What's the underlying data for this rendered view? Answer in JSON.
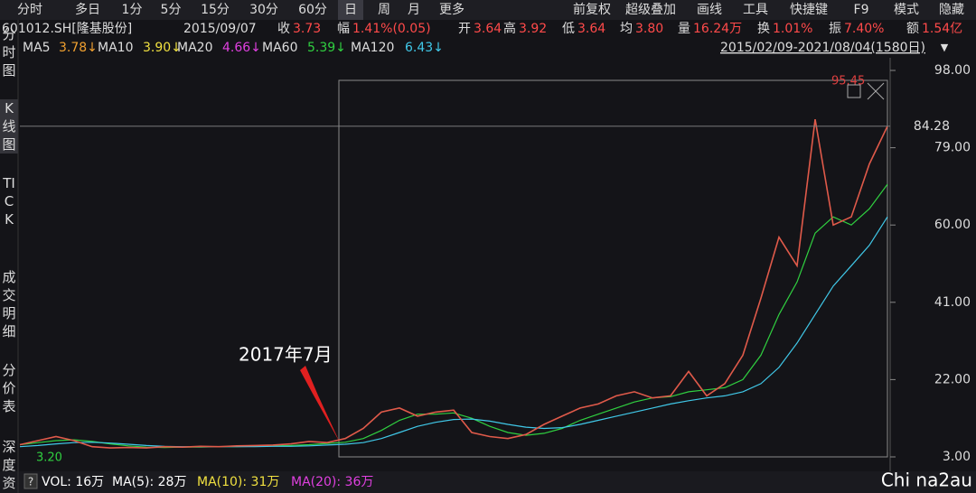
{
  "toolbar": {
    "tabs": [
      "分时",
      "多日",
      "1分",
      "5分",
      "15分",
      "30分",
      "60分",
      "日",
      "周",
      "月",
      "更多"
    ],
    "active": 7,
    "tools": [
      "前复权",
      "超级叠加",
      "画线",
      "工具",
      "快捷键",
      "F9",
      "模式",
      "隐藏"
    ]
  },
  "quote": {
    "code": "601012.SH[隆基股份]",
    "date": "2015/09/07",
    "items": [
      {
        "label": "收",
        "value": "3.73"
      },
      {
        "label": "幅",
        "value": "1.41%(0.05)"
      },
      {
        "label": "开",
        "value": "3.64"
      },
      {
        "label": "高",
        "value": "3.92"
      },
      {
        "label": "低",
        "value": "3.64"
      },
      {
        "label": "均",
        "value": "3.80"
      },
      {
        "label": "量",
        "value": "16.24万"
      },
      {
        "label": "换",
        "value": "1.01%"
      },
      {
        "label": "振",
        "value": "7.40%"
      },
      {
        "label": "额",
        "value": "1.54亿"
      }
    ]
  },
  "side_tabs": [
    "分时图",
    "K线图",
    "TICK",
    "成交明细",
    "分价表",
    "深度资"
  ],
  "watermark": "Chi na2au",
  "chart_data": {
    "type": "line",
    "range": "2015/02/09-2021/08/04(1580日)",
    "ma": [
      {
        "name": "MA5",
        "value": "3.78↓",
        "color": "#f0a030"
      },
      {
        "name": "MA10",
        "value": "3.90↓",
        "color": "#f0e040"
      },
      {
        "name": "MA20",
        "value": "4.66↓",
        "color": "#e040e0"
      },
      {
        "name": "MA60",
        "value": "5.39↓",
        "color": "#30d040",
        "values": [
          6,
          6.5,
          7,
          7.2,
          6.8,
          6.2,
          5.7,
          5.4,
          5.3,
          5.4,
          5.4,
          5.5,
          5.5,
          5.6,
          5.7,
          5.8,
          6,
          6.3,
          6.6,
          7.5,
          9.5,
          12,
          13.5,
          13.5,
          13.8,
          12.5,
          10.5,
          9,
          8.3,
          8.8,
          10,
          12,
          13.5,
          15,
          16.5,
          17.5,
          17.8,
          19,
          19.5,
          20,
          22,
          28,
          38,
          46,
          58,
          62,
          60,
          64,
          70
        ]
      },
      {
        "name": "MA120",
        "value": "6.43↓",
        "color": "#40c8e8",
        "values": [
          5.5,
          5.8,
          6.2,
          6.5,
          6.6,
          6.4,
          6.1,
          5.8,
          5.6,
          5.5,
          5.5,
          5.5,
          5.5,
          5.5,
          5.6,
          5.6,
          5.7,
          5.9,
          6.1,
          6.5,
          7.5,
          9,
          10.5,
          11.5,
          12.2,
          12.3,
          11.8,
          11,
          10.3,
          10,
          10.2,
          11,
          12,
          13,
          14,
          15,
          16,
          16.8,
          17.5,
          18,
          19,
          21,
          25,
          31,
          38,
          45,
          50,
          55,
          62
        ]
      }
    ],
    "series": [
      {
        "color": "#e05a4a",
        "values": [
          6,
          7,
          8,
          7,
          5.5,
          5.2,
          5.3,
          5.2,
          5.5,
          5.4,
          5.6,
          5.5,
          5.7,
          5.8,
          5.9,
          6.2,
          6.8,
          6.5,
          7.5,
          10,
          14,
          15,
          13,
          14,
          14.5,
          9,
          8,
          7.5,
          8.5,
          11,
          13,
          15,
          16,
          18,
          19,
          17.5,
          18,
          24,
          18,
          21,
          28,
          42,
          57,
          50,
          86,
          60,
          62,
          75,
          84.28
        ]
      }
    ],
    "ylim": [
      3,
      98
    ],
    "yticks": [
      {
        "value": 98,
        "label": "98.00"
      },
      {
        "value": 79,
        "label": "79.00"
      },
      {
        "value": 60,
        "label": "60.00"
      },
      {
        "value": 41,
        "label": "41.00"
      },
      {
        "value": 22,
        "label": "22.00"
      },
      {
        "value": 3,
        "label": "3.00"
      }
    ],
    "annotations": [
      {
        "text": "2017年7月"
      },
      {
        "text": "95.45"
      },
      {
        "text": "3.20"
      }
    ],
    "volume_legend": [
      {
        "text": "VOL: 16万",
        "color": "#ffffff"
      },
      {
        "text": "MA(5): 28万",
        "color": "#ffffff"
      },
      {
        "text": "MA(10): 31万",
        "color": "#f0e040"
      },
      {
        "text": "MA(20): 36万",
        "color": "#e040e0"
      }
    ]
  }
}
